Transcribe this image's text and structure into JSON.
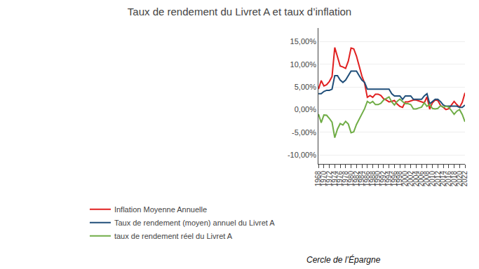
{
  "chart_data": {
    "type": "line",
    "title": "Taux de rendement du Livret A et taux d’inflation",
    "x": [
      1968,
      1969,
      1970,
      1971,
      1972,
      1973,
      1974,
      1975,
      1976,
      1977,
      1978,
      1979,
      1980,
      1981,
      1982,
      1983,
      1984,
      1985,
      1986,
      1987,
      1988,
      1989,
      1990,
      1991,
      1992,
      1993,
      1994,
      1995,
      1996,
      1997,
      1998,
      1999,
      2000,
      2001,
      2002,
      2003,
      2004,
      2005,
      2006,
      2007,
      2008,
      2009,
      2010,
      2011,
      2012,
      2013,
      2014,
      2015,
      2016,
      2017,
      2018,
      2019,
      2020,
      2021,
      2022
    ],
    "series": [
      {
        "name": "Inflation Moyenne Annuelle",
        "color": "#e02020",
        "values": [
          4.5,
          6.4,
          5.2,
          5.5,
          6.2,
          7.3,
          13.7,
          11.8,
          9.6,
          9.4,
          9.1,
          10.7,
          13.6,
          13.4,
          11.8,
          9.6,
          7.4,
          5.8,
          2.7,
          3.1,
          2.7,
          3.4,
          3.4,
          3.1,
          2.4,
          2.1,
          1.7,
          1.8,
          2.0,
          1.2,
          0.7,
          0.5,
          1.7,
          1.7,
          1.9,
          2.1,
          2.1,
          1.9,
          1.7,
          1.5,
          2.8,
          0.1,
          1.5,
          2.1,
          2.0,
          0.9,
          0.5,
          0.0,
          0.2,
          1.0,
          1.8,
          1.1,
          0.5,
          1.6,
          3.7
        ]
      },
      {
        "name": "Taux de rendement (moyen) annuel du Livret A",
        "color": "#1f4e79",
        "values": [
          3.5,
          3.5,
          4.0,
          4.25,
          4.25,
          4.5,
          7.5,
          7.5,
          6.5,
          6.0,
          6.5,
          7.5,
          8.5,
          8.5,
          8.5,
          7.5,
          6.5,
          6.0,
          4.5,
          4.5,
          4.5,
          4.5,
          4.5,
          4.5,
          4.5,
          4.5,
          4.5,
          3.5,
          3.0,
          3.0,
          3.0,
          2.25,
          3.0,
          3.0,
          3.0,
          2.25,
          2.25,
          2.25,
          2.25,
          3.0,
          3.5,
          1.25,
          1.75,
          2.25,
          2.25,
          1.75,
          1.0,
          0.75,
          0.75,
          0.75,
          0.75,
          0.75,
          0.5,
          0.5,
          1.0
        ]
      },
      {
        "name": "taux de rendement réel du Livret A",
        "color": "#70ad47",
        "values": [
          -1.0,
          -2.9,
          -1.2,
          -1.25,
          -1.95,
          -2.8,
          -6.2,
          -4.3,
          -3.1,
          -3.4,
          -2.6,
          -3.2,
          -5.1,
          -4.9,
          -3.3,
          -2.1,
          -0.9,
          0.2,
          1.8,
          1.4,
          1.8,
          1.1,
          1.1,
          1.4,
          2.1,
          2.4,
          2.8,
          1.7,
          1.0,
          1.8,
          2.3,
          1.75,
          1.3,
          1.3,
          1.1,
          0.15,
          0.15,
          0.35,
          0.55,
          1.5,
          0.7,
          1.15,
          0.25,
          0.15,
          0.25,
          0.85,
          0.5,
          0.75,
          0.55,
          -0.25,
          -1.05,
          -0.35,
          0.0,
          -1.1,
          -2.7
        ]
      }
    ],
    "xlim": [
      1968,
      2022
    ],
    "xticks": [
      1968,
      1970,
      1972,
      1974,
      1976,
      1978,
      1980,
      1982,
      1984,
      1986,
      1988,
      1990,
      1992,
      1994,
      1996,
      1998,
      2000,
      2002,
      2004,
      2006,
      2008,
      2010,
      2012,
      2014,
      2016,
      2018,
      2020,
      2022
    ],
    "ylim": [
      -12,
      18
    ],
    "yticks": [
      {
        "value": -10,
        "label": "-10,00%"
      },
      {
        "value": -5,
        "label": "-5,00%"
      },
      {
        "value": 0,
        "label": "0,00%"
      },
      {
        "value": 5,
        "label": "5,00%"
      },
      {
        "value": 10,
        "label": "10,00%"
      },
      {
        "value": 15,
        "label": "15,00%"
      }
    ],
    "grid": "y",
    "legend": "bottom",
    "annotations": [
      "Cercle de l’Épargne"
    ]
  }
}
